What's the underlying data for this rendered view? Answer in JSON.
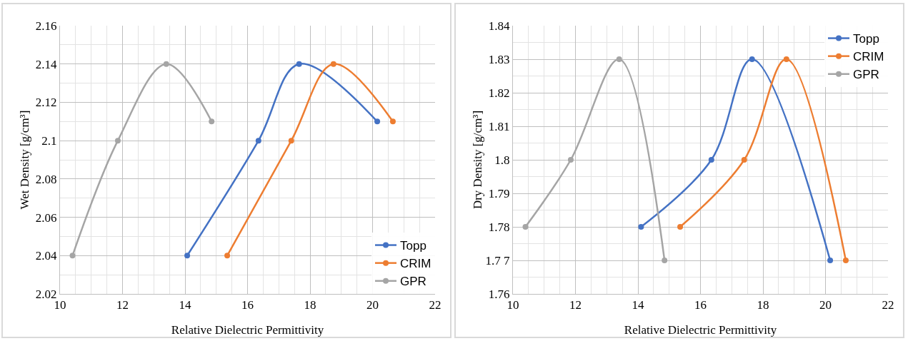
{
  "chart_data": [
    {
      "type": "line",
      "xlabel": "Relative Dielectric Permittivity",
      "ylabel": "Wet Density [g/cm³]",
      "xlim": [
        10,
        22
      ],
      "xticks": [
        10,
        12,
        14,
        16,
        18,
        20,
        22
      ],
      "ylim": [
        2.02,
        2.16
      ],
      "yticks": [
        2.02,
        2.04,
        2.06,
        2.08,
        2.1,
        2.12,
        2.14,
        2.16
      ],
      "grid": true,
      "legend": "bottom right",
      "marker": "circle",
      "line_style": "solid",
      "series": [
        {
          "name": "Topp",
          "color": "#4472c4",
          "x": [
            14.07,
            16.35,
            17.65,
            20.15
          ],
          "values": [
            2.04,
            2.1,
            2.14,
            2.11
          ]
        },
        {
          "name": "CRIM",
          "color": "#ed7d31",
          "x": [
            15.35,
            17.4,
            18.75,
            20.65
          ],
          "values": [
            2.04,
            2.1,
            2.14,
            2.11
          ]
        },
        {
          "name": "GPR",
          "color": "#a5a5a5",
          "x": [
            10.4,
            11.85,
            13.4,
            14.85
          ],
          "values": [
            2.04,
            2.1,
            2.14,
            2.11
          ]
        }
      ]
    },
    {
      "type": "line",
      "xlabel": "Relative Dielectric Permittivity",
      "ylabel": "Dry Density [g/cm³]",
      "xlim": [
        10,
        22
      ],
      "xticks": [
        10,
        12,
        14,
        16,
        18,
        20,
        22
      ],
      "ylim": [
        1.76,
        1.84
      ],
      "yticks": [
        1.76,
        {
          "value": 1.77,
          "label": "1.7 7"
        },
        1.78,
        1.79,
        1.8,
        1.81,
        1.82,
        1.83,
        1.84
      ],
      "grid": true,
      "legend": "top right",
      "marker": "circle",
      "line_style": "solid",
      "series": [
        {
          "name": "Topp",
          "color": "#4472c4",
          "x": [
            14.1,
            16.35,
            17.65,
            20.15
          ],
          "values": [
            1.78,
            1.8,
            1.83,
            1.77
          ]
        },
        {
          "name": "CRIM",
          "color": "#ed7d31",
          "x": [
            15.35,
            17.4,
            18.75,
            20.65
          ],
          "values": [
            1.78,
            1.8,
            1.83,
            1.77
          ]
        },
        {
          "name": "GPR",
          "color": "#a5a5a5",
          "x": [
            10.4,
            11.85,
            13.4,
            14.85
          ],
          "values": [
            1.78,
            1.8,
            1.83,
            1.77
          ]
        }
      ]
    }
  ]
}
